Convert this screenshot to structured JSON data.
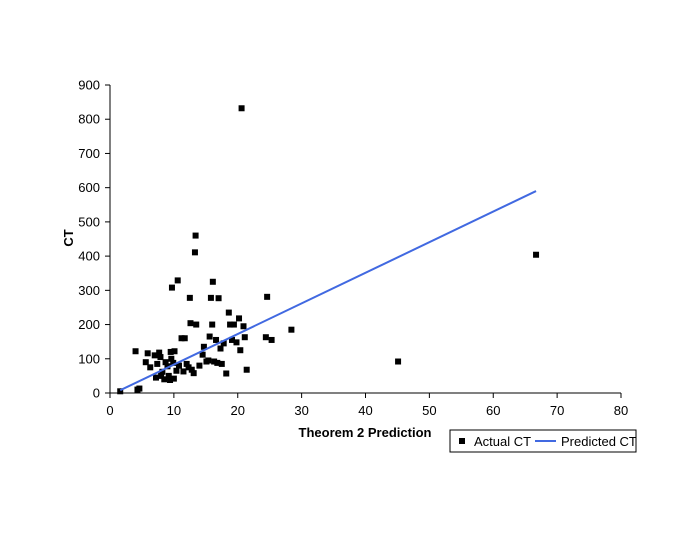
{
  "chart_data": {
    "type": "scatter",
    "title": "",
    "xlabel": "Theorem 2 Prediction",
    "ylabel": "CT",
    "xlim": [
      0,
      80
    ],
    "ylim": [
      0,
      900
    ],
    "xticks": [
      0,
      10,
      20,
      30,
      40,
      50,
      60,
      70,
      80
    ],
    "yticks": [
      0,
      100,
      200,
      300,
      400,
      500,
      600,
      700,
      800,
      900
    ],
    "grid": false,
    "legend_position": "bottom-right",
    "colors": {
      "points": "#000000",
      "line": "#4169e1"
    },
    "series": [
      {
        "name": "Actual CT",
        "kind": "scatter",
        "points": [
          [
            1.6,
            5
          ],
          [
            4.0,
            122
          ],
          [
            4.3,
            10
          ],
          [
            4.6,
            13
          ],
          [
            5.6,
            90
          ],
          [
            5.9,
            116
          ],
          [
            6.3,
            75
          ],
          [
            7.0,
            110
          ],
          [
            7.2,
            45
          ],
          [
            7.4,
            85
          ],
          [
            7.7,
            118
          ],
          [
            7.9,
            105
          ],
          [
            8.0,
            50
          ],
          [
            8.2,
            62
          ],
          [
            8.5,
            40
          ],
          [
            8.7,
            90
          ],
          [
            9.0,
            78
          ],
          [
            9.2,
            50
          ],
          [
            9.4,
            38
          ],
          [
            9.5,
            120
          ],
          [
            9.6,
            100
          ],
          [
            9.7,
            308
          ],
          [
            9.9,
            88
          ],
          [
            10.0,
            42
          ],
          [
            10.1,
            122
          ],
          [
            10.4,
            65
          ],
          [
            10.6,
            329
          ],
          [
            10.8,
            80
          ],
          [
            11.2,
            160
          ],
          [
            11.5,
            63
          ],
          [
            11.7,
            160
          ],
          [
            12.0,
            85
          ],
          [
            12.3,
            75
          ],
          [
            12.5,
            278
          ],
          [
            12.6,
            204
          ],
          [
            12.8,
            68
          ],
          [
            13.1,
            58
          ],
          [
            13.3,
            411
          ],
          [
            13.4,
            460
          ],
          [
            13.5,
            200
          ],
          [
            14.0,
            80
          ],
          [
            14.5,
            112
          ],
          [
            14.7,
            135
          ],
          [
            15.1,
            92
          ],
          [
            15.4,
            95
          ],
          [
            15.6,
            165
          ],
          [
            15.8,
            278
          ],
          [
            16.0,
            200
          ],
          [
            16.1,
            325
          ],
          [
            16.3,
            92
          ],
          [
            16.6,
            155
          ],
          [
            16.8,
            88
          ],
          [
            17.0,
            277
          ],
          [
            17.3,
            130
          ],
          [
            17.5,
            85
          ],
          [
            17.8,
            145
          ],
          [
            18.2,
            57
          ],
          [
            18.6,
            235
          ],
          [
            18.8,
            200
          ],
          [
            19.1,
            155
          ],
          [
            19.4,
            200
          ],
          [
            19.8,
            148
          ],
          [
            20.2,
            218
          ],
          [
            20.4,
            125
          ],
          [
            20.6,
            832
          ],
          [
            20.9,
            195
          ],
          [
            21.1,
            163
          ],
          [
            21.4,
            68
          ],
          [
            24.4,
            163
          ],
          [
            24.6,
            281
          ],
          [
            25.3,
            155
          ],
          [
            28.4,
            185
          ],
          [
            45.1,
            92
          ],
          [
            66.7,
            404
          ]
        ]
      },
      {
        "name": "Predicted CT",
        "kind": "line",
        "points": [
          [
            1.6,
            8
          ],
          [
            66.7,
            590
          ]
        ]
      }
    ]
  }
}
